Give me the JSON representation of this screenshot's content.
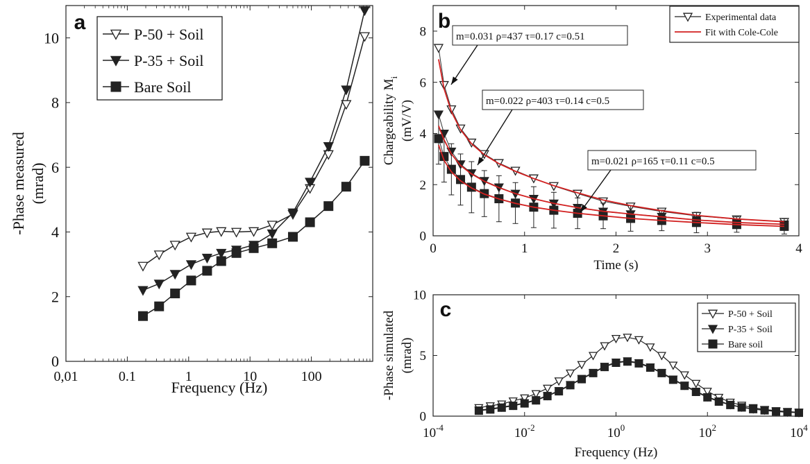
{
  "chart_data": [
    {
      "panel": "a",
      "type": "line",
      "xlabel": "Frequency (Hz)",
      "ylabel": [
        "-Phase measured",
        "(mrad)"
      ],
      "x_scale": "log",
      "xlim": [
        0.01,
        1000
      ],
      "ylim": [
        0,
        11
      ],
      "x_ticks": [
        0.01,
        0.1,
        1,
        10,
        100
      ],
      "x_tick_labels": [
        "0,01",
        "0.1",
        "1",
        "10",
        "100"
      ],
      "y_ticks": [
        0,
        2,
        4,
        6,
        8,
        10
      ],
      "legend": "top-left",
      "x": [
        0.18,
        0.33,
        0.6,
        1.1,
        2.0,
        3.4,
        6.0,
        11.5,
        23,
        50,
        95,
        190,
        370,
        740
      ],
      "series": [
        {
          "name": "P-50 + Soil",
          "marker": "triangle-open",
          "values": [
            2.95,
            3.3,
            3.6,
            3.85,
            3.98,
            4.02,
            4.0,
            4.02,
            4.22,
            4.55,
            5.35,
            6.4,
            7.95,
            10.05
          ]
        },
        {
          "name": "P-35 + Soil",
          "marker": "triangle-filled",
          "values": [
            2.2,
            2.4,
            2.7,
            3.0,
            3.2,
            3.35,
            3.45,
            3.6,
            3.95,
            4.6,
            5.55,
            6.65,
            8.4,
            10.85
          ]
        },
        {
          "name": "Bare Soil",
          "marker": "square-filled",
          "values": [
            1.4,
            1.7,
            2.1,
            2.5,
            2.8,
            3.1,
            3.35,
            3.5,
            3.65,
            3.85,
            4.3,
            4.8,
            5.4,
            6.2
          ]
        }
      ]
    },
    {
      "panel": "b",
      "type": "scatter",
      "xlabel": "Time (s)",
      "ylabel": [
        "Chargeability M",
        "i",
        "(mV/V)"
      ],
      "xlim": [
        0,
        4
      ],
      "ylim": [
        0,
        9
      ],
      "x_ticks": [
        0,
        1,
        2,
        3,
        4
      ],
      "y_ticks": [
        0,
        2,
        4,
        6,
        8
      ],
      "legend": "top-right",
      "legend_entries": [
        "Experimental data",
        "Fit with Cole-Cole"
      ],
      "annotations": [
        {
          "text": "m=0.031 ρ=437 τ=0.17 c=0.51"
        },
        {
          "text": "m=0.022 ρ=403 τ=0.14 c=0.5"
        },
        {
          "text": "m=0.021 ρ=165 τ=0.11 c=0.5"
        }
      ],
      "time": [
        0.06,
        0.12,
        0.2,
        0.3,
        0.42,
        0.56,
        0.72,
        0.9,
        1.1,
        1.32,
        1.58,
        1.86,
        2.16,
        2.5,
        2.88,
        3.32,
        3.84
      ],
      "series": [
        {
          "name": "Experimental data",
          "marker": "triangle-open",
          "values": [
            7.35,
            5.9,
            4.95,
            4.2,
            3.65,
            3.2,
            2.85,
            2.55,
            2.25,
            1.95,
            1.65,
            1.35,
            1.15,
            0.95,
            0.78,
            0.65,
            0.55
          ]
        },
        {
          "marker": "triangle-filled",
          "values": [
            4.75,
            4.0,
            3.3,
            2.8,
            2.45,
            2.15,
            1.9,
            1.65,
            1.45,
            1.27,
            1.1,
            0.95,
            0.85,
            0.75,
            0.62,
            0.52,
            0.45
          ]
        },
        {
          "marker": "square-filled",
          "values": [
            3.8,
            3.1,
            2.6,
            2.2,
            1.9,
            1.65,
            1.45,
            1.28,
            1.12,
            1.0,
            0.88,
            0.78,
            0.68,
            0.6,
            0.52,
            0.44,
            0.37
          ],
          "errors": [
            1.0,
            1.0,
            1.0,
            1.0,
            1.0,
            0.9,
            0.9,
            0.8,
            0.8,
            0.7,
            0.6,
            0.5,
            0.5,
            0.4,
            0.4,
            0.3,
            0.3
          ]
        }
      ],
      "fits": [
        {
          "name": "Fit with Cole-Cole",
          "color": "#d22020",
          "values": [
            6.9,
            5.75,
            4.85,
            4.15,
            3.6,
            3.17,
            2.82,
            2.52,
            2.24,
            1.96,
            1.68,
            1.4,
            1.18,
            0.98,
            0.8,
            0.66,
            0.55
          ]
        },
        {
          "color": "#d22020",
          "values": [
            4.3,
            3.75,
            3.2,
            2.75,
            2.42,
            2.13,
            1.88,
            1.65,
            1.45,
            1.27,
            1.1,
            0.96,
            0.85,
            0.74,
            0.62,
            0.52,
            0.45
          ]
        },
        {
          "color": "#d22020",
          "values": [
            3.55,
            2.95,
            2.5,
            2.15,
            1.87,
            1.63,
            1.44,
            1.27,
            1.12,
            1.0,
            0.88,
            0.78,
            0.68,
            0.6,
            0.52,
            0.44,
            0.37
          ]
        }
      ]
    },
    {
      "panel": "c",
      "type": "line",
      "xlabel": "Frequency (Hz)",
      "ylabel": [
        "-Phase simulated",
        "(mrad)"
      ],
      "x_scale": "log",
      "xlim": [
        0.0001,
        10000
      ],
      "ylim": [
        0,
        10
      ],
      "x_ticks": [
        0.0001,
        0.01,
        1,
        100,
        10000
      ],
      "x_tick_labels": [
        {
          "base": "10",
          "exp": "-4"
        },
        {
          "base": "10",
          "exp": "-2"
        },
        {
          "base": "10",
          "exp": "0"
        },
        {
          "base": "10",
          "exp": "2"
        },
        {
          "base": "10",
          "exp": "4"
        }
      ],
      "y_ticks": [
        0,
        5,
        10
      ],
      "legend": "top-right",
      "log10_x": [
        -3,
        -2.75,
        -2.5,
        -2.25,
        -2,
        -1.75,
        -1.5,
        -1.25,
        -1,
        -0.75,
        -0.5,
        -0.25,
        0,
        0.25,
        0.5,
        0.75,
        1,
        1.25,
        1.5,
        1.75,
        2,
        2.25,
        2.5,
        2.75,
        3,
        3.25,
        3.5,
        3.75,
        4
      ],
      "series": [
        {
          "name": "P-50 + Soil",
          "marker": "triangle-open",
          "values": [
            0.7,
            0.85,
            1.0,
            1.25,
            1.5,
            1.85,
            2.3,
            2.9,
            3.55,
            4.25,
            5.0,
            5.8,
            6.4,
            6.5,
            6.3,
            5.7,
            5.0,
            4.2,
            3.4,
            2.7,
            2.05,
            1.55,
            1.15,
            0.9,
            0.7,
            0.55,
            0.45,
            0.38,
            0.32
          ]
        },
        {
          "name": "P-35 + Soil",
          "marker": "triangle-filled",
          "values": [
            0.5,
            0.6,
            0.75,
            0.9,
            1.1,
            1.35,
            1.7,
            2.1,
            2.6,
            3.1,
            3.6,
            4.1,
            4.45,
            4.55,
            4.4,
            4.05,
            3.6,
            3.05,
            2.55,
            2.05,
            1.6,
            1.25,
            0.95,
            0.75,
            0.6,
            0.5,
            0.4,
            0.34,
            0.3
          ]
        },
        {
          "name": "Bare soil",
          "marker": "square-filled",
          "values": [
            0.45,
            0.55,
            0.7,
            0.85,
            1.05,
            1.3,
            1.65,
            2.05,
            2.55,
            3.05,
            3.55,
            4.05,
            4.4,
            4.5,
            4.35,
            4.0,
            3.55,
            3.0,
            2.5,
            2.0,
            1.55,
            1.2,
            0.92,
            0.72,
            0.58,
            0.48,
            0.38,
            0.32,
            0.28
          ]
        }
      ]
    }
  ]
}
